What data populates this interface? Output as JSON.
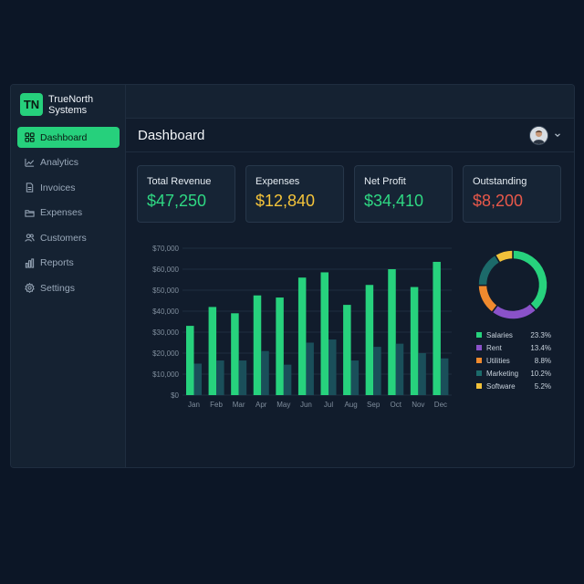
{
  "brand": {
    "logo": "TN",
    "name_line1": "TrueNorth",
    "name_line2": "Systems"
  },
  "nav": [
    {
      "label": "Dashboard",
      "icon": "grid-icon",
      "active": true
    },
    {
      "label": "Analytics",
      "icon": "trend-icon"
    },
    {
      "label": "Invoices",
      "icon": "document-icon"
    },
    {
      "label": "Expenses",
      "icon": "folder-icon"
    },
    {
      "label": "Customers",
      "icon": "users-icon"
    },
    {
      "label": "Reports",
      "icon": "bar-chart-icon"
    },
    {
      "label": "Settings",
      "icon": "gear-icon"
    }
  ],
  "header": {
    "title": "Dashboard"
  },
  "cards": [
    {
      "label": "Total Revenue",
      "value": "$47,250",
      "color": "#2fd883"
    },
    {
      "label": "Expenses",
      "value": "$12,840",
      "color": "#f5c43a"
    },
    {
      "label": "Net Profit",
      "value": "$34,410",
      "color": "#2fd883"
    },
    {
      "label": "Outstanding",
      "value": "$8,200",
      "color": "#e8584a"
    }
  ],
  "chart_data": [
    {
      "type": "bar",
      "categories": [
        "Jan",
        "Feb",
        "Mar",
        "Apr",
        "May",
        "Jun",
        "Jul",
        "Aug",
        "Sep",
        "Oct",
        "Nov",
        "Dec"
      ],
      "series": [
        {
          "values": [
            33000,
            42000,
            39000,
            47500,
            46500,
            56000,
            58500,
            43000,
            52500,
            60000,
            51500,
            63500
          ],
          "color": "#27d27d"
        },
        {
          "values": [
            15000,
            16500,
            16500,
            21000,
            14500,
            25000,
            26500,
            16500,
            23000,
            24500,
            20000,
            17500
          ],
          "color": "#1a4f5a"
        }
      ],
      "yticks": [
        "$0",
        "$10,000",
        "$20,000",
        "$30,000",
        "$40,000",
        "$50,000",
        "$60,000",
        "$70,000"
      ],
      "ylim": [
        0,
        70000
      ],
      "grid": true
    },
    {
      "type": "pie",
      "labels": [
        "Salaries",
        "Rent",
        "Utilities",
        "Marketing",
        "Software"
      ],
      "values": [
        23.3,
        13.4,
        8.8,
        10.2,
        5.2
      ],
      "display": [
        "23.3%",
        "13.4%",
        "8.8%",
        "10.2%",
        "5.2%"
      ],
      "colors": [
        "#27d27d",
        "#8a52c9",
        "#f08a2e",
        "#1c6a6a",
        "#f2c23a"
      ]
    }
  ]
}
